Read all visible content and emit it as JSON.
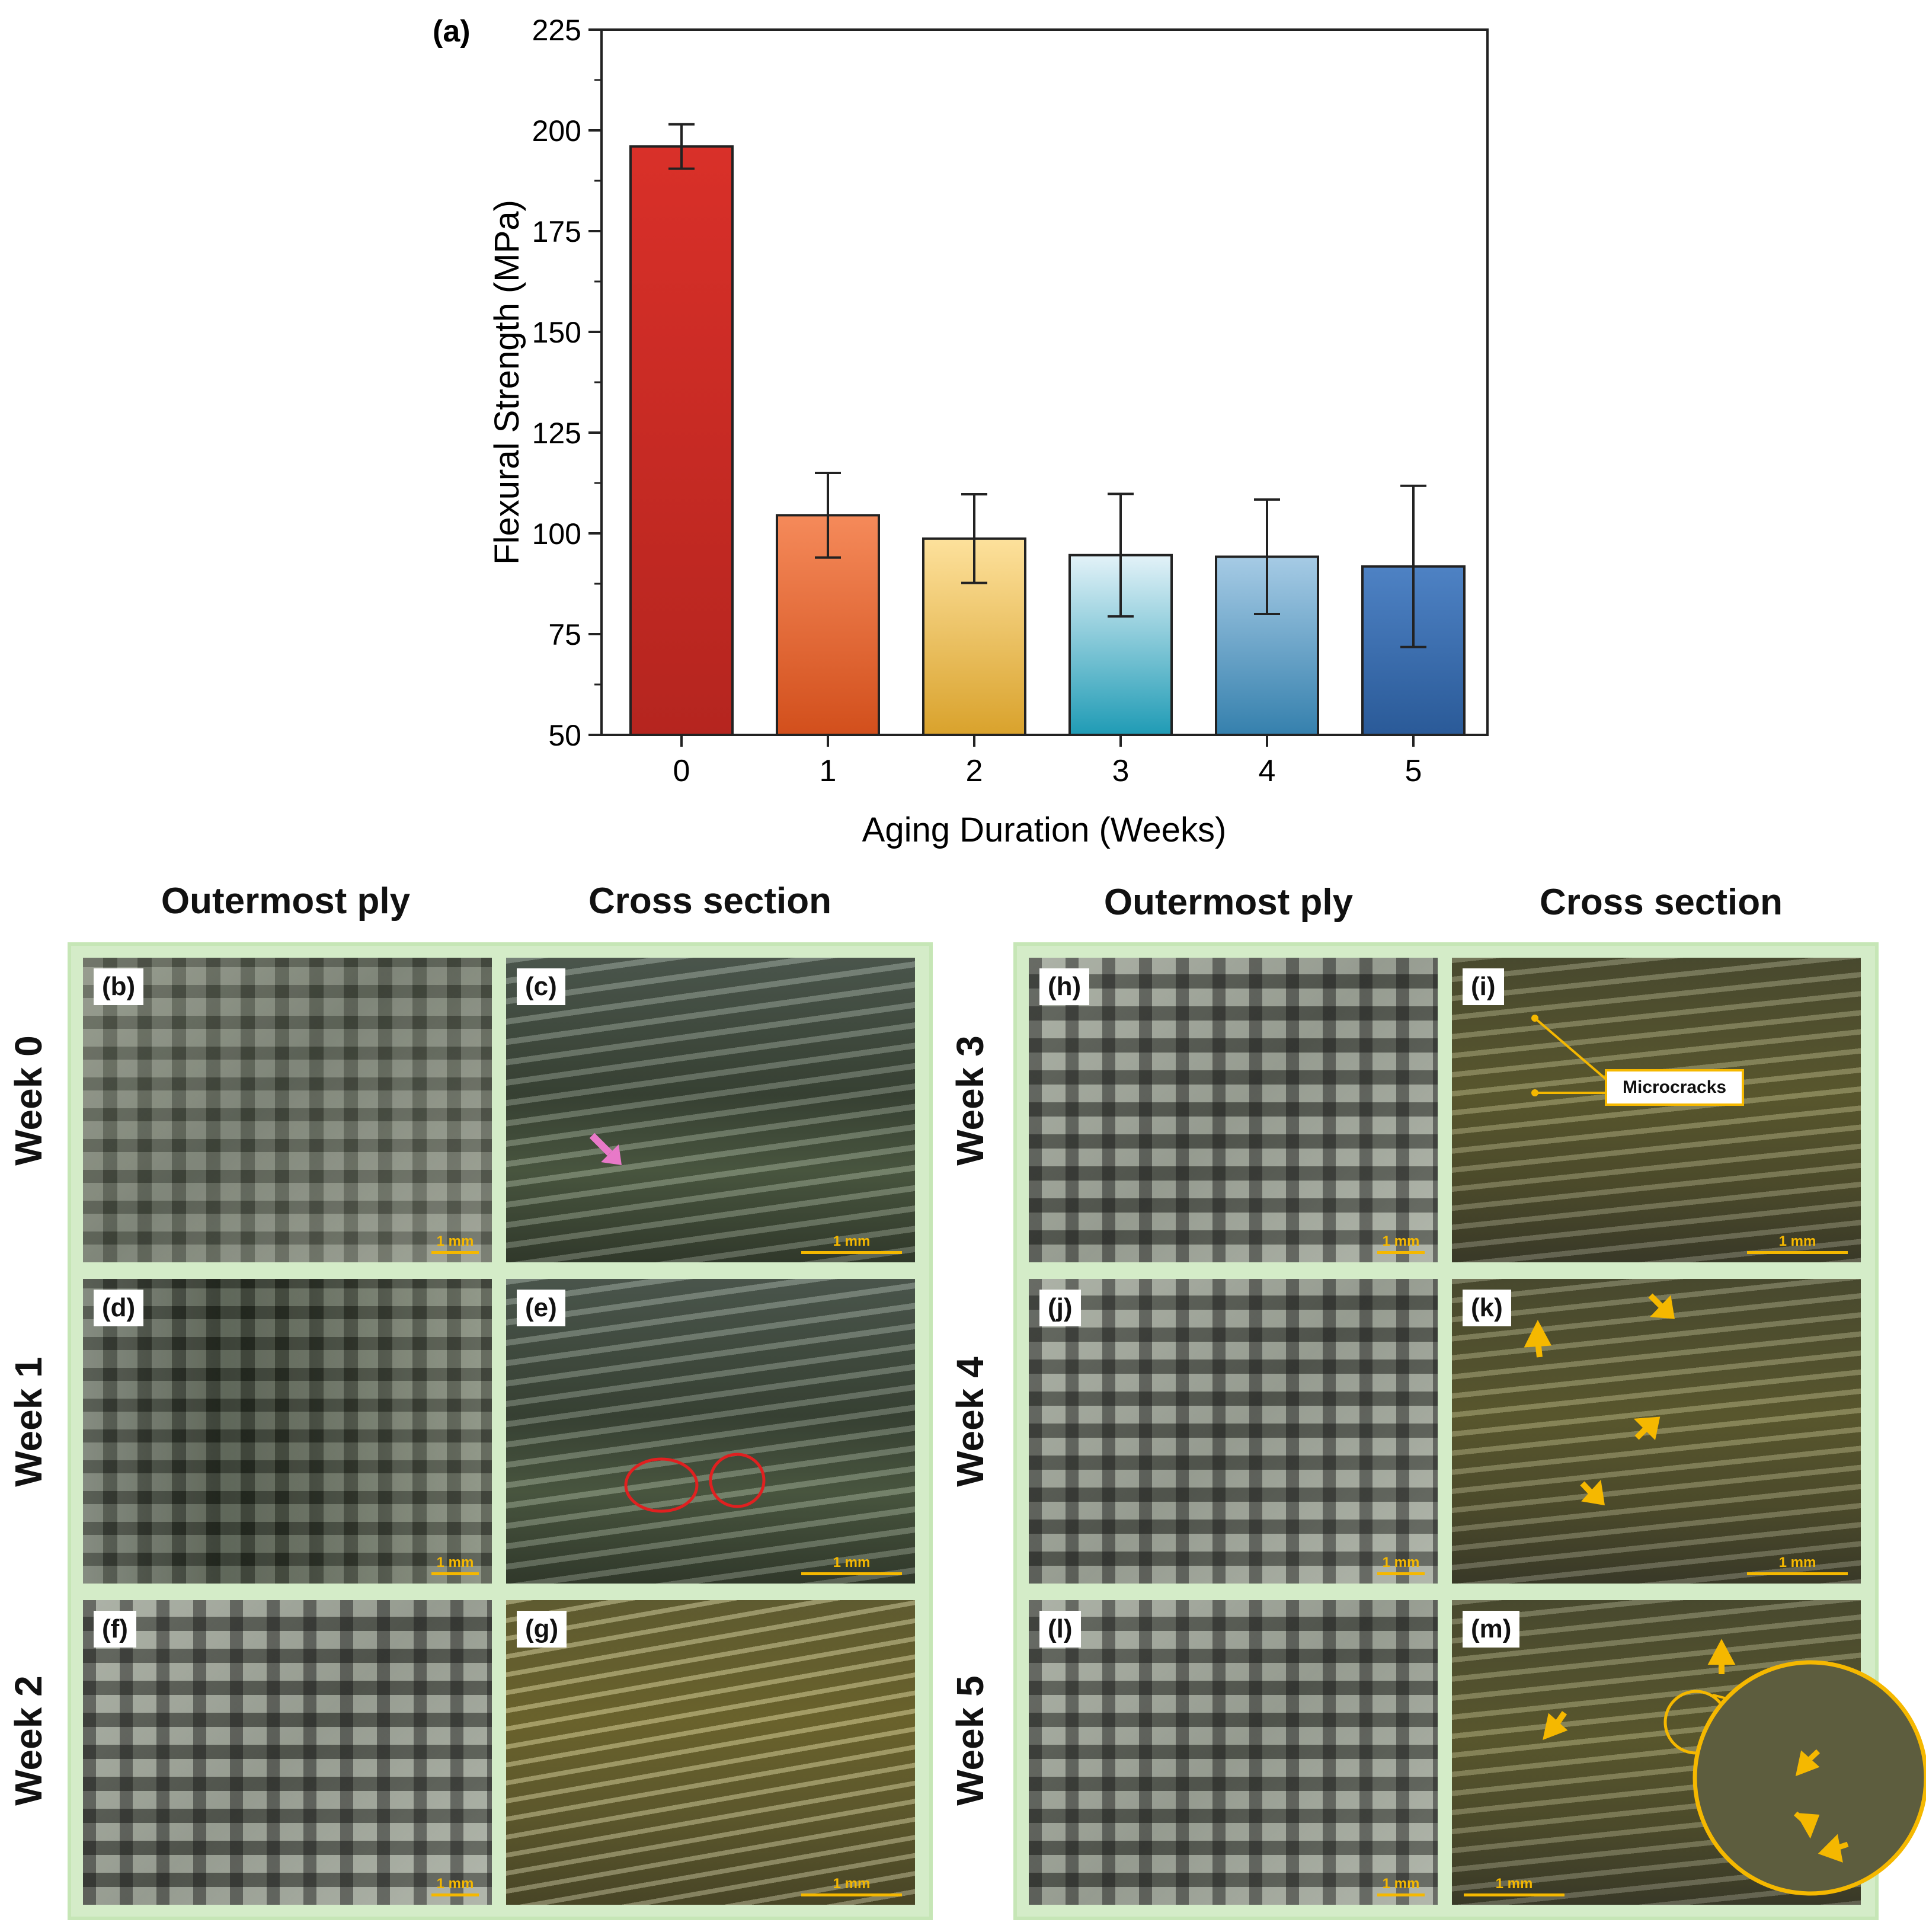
{
  "panel_a_label": "(a)",
  "chart_data": {
    "type": "bar",
    "categories": [
      "0",
      "1",
      "2",
      "3",
      "4",
      "5"
    ],
    "values": [
      196,
      104.5,
      98.7,
      94.6,
      94.2,
      91.8
    ],
    "error": [
      5.5,
      10.5,
      11.0,
      15.2,
      14.2,
      20.0
    ],
    "xlabel": "Aging Duration (Weeks)",
    "ylabel": "Flexural Strength (MPa)",
    "ylim": [
      50,
      225
    ],
    "yticks": [
      50,
      75,
      100,
      125,
      150,
      175,
      200,
      225
    ],
    "grid": false,
    "bar_colors": [
      [
        "#d93029",
        "#b5251f"
      ],
      [
        "#f58a5a",
        "#d24f1c"
      ],
      [
        "#fde19c",
        "#d9a22c"
      ],
      [
        "#e3f2f8",
        "#1f9bb5"
      ],
      [
        "#a6cbe5",
        "#3580ad"
      ],
      [
        "#4e82c4",
        "#2a5a98"
      ]
    ]
  },
  "headers": {
    "outermost_left": "Outermost ply",
    "cross_left": "Cross section",
    "outermost_right": "Outermost ply",
    "cross_right": "Cross section"
  },
  "rows": [
    "Week 0",
    "Week 1",
    "Week 2",
    "Week 3",
    "Week 4",
    "Week 5"
  ],
  "panels": [
    "(b)",
    "(c)",
    "(d)",
    "(e)",
    "(f)",
    "(g)",
    "(h)",
    "(i)",
    "(j)",
    "(k)",
    "(l)",
    "(m)"
  ],
  "scale_text": "1 mm",
  "callout": "Microcracks",
  "colors": {
    "green_frame": "#d4ecc8",
    "accent_yellow": "#f5b800",
    "circle_red": "#e02020",
    "arrow_pink": "#e879c8"
  }
}
